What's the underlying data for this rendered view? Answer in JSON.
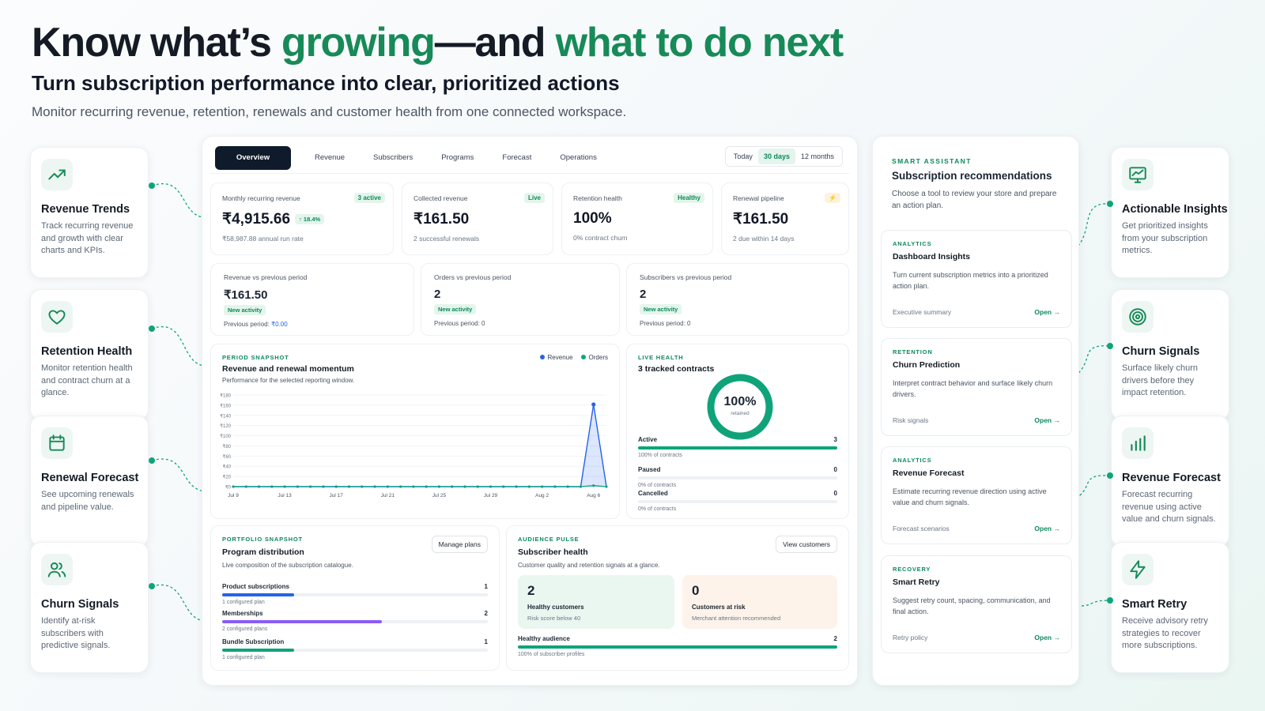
{
  "header": {
    "title_part1": "Know what’s ",
    "title_accent1": "growing",
    "title_part2": "—and ",
    "title_accent2": "what to do next",
    "subtitle": "Turn subscription performance into clear, prioritized actions",
    "description": "Monitor recurring revenue, retention, renewals and customer health from one connected workspace."
  },
  "left_features": [
    {
      "title": "Revenue Trends",
      "desc": "Track recurring revenue and growth with clear charts and KPIs.",
      "icon": "trend-up-icon"
    },
    {
      "title": "Retention Health",
      "desc": "Monitor retention health and contract churn at a glance.",
      "icon": "heart-icon"
    },
    {
      "title": "Renewal Forecast",
      "desc": "See upcoming renewals and pipeline value.",
      "icon": "calendar-icon"
    },
    {
      "title": "Churn Signals",
      "desc": "Identify at-risk subscribers with predictive signals.",
      "icon": "users-icon"
    }
  ],
  "right_features": [
    {
      "title": "Actionable Insights",
      "desc": "Get prioritized insights from your subscription metrics.",
      "icon": "chart-monitor-icon"
    },
    {
      "title": "Churn Signals",
      "desc": "Surface likely churn drivers before they impact retention.",
      "icon": "target-icon"
    },
    {
      "title": "Revenue Forecast",
      "desc": "Forecast recurring revenue using active value and churn signals.",
      "icon": "bar-chart-icon"
    },
    {
      "title": "Smart Retry",
      "desc": "Receive advisory retry strategies to recover more subscriptions.",
      "icon": "lightning-icon"
    }
  ],
  "dashboard": {
    "tabs": [
      "Overview",
      "Revenue",
      "Subscribers",
      "Programs",
      "Forecast",
      "Operations"
    ],
    "active_tab": "Overview",
    "ranges": [
      "Today",
      "30 days",
      "12 months"
    ],
    "selected_range": "30 days",
    "kpis": [
      {
        "label": "Monthly recurring revenue",
        "badge": "3 active",
        "value": "₹4,915.66",
        "delta": "↑ 18.4%",
        "sub": "₹58,987.88 annual run rate"
      },
      {
        "label": "Collected revenue",
        "badge": "Live",
        "value": "₹161.50",
        "sub": "2 successful renewals"
      },
      {
        "label": "Retention health",
        "badge": "Healthy",
        "value": "100%",
        "sub": "0% contract churn"
      },
      {
        "label": "Renewal pipeline",
        "badge": "⚡",
        "value": "₹161.50",
        "sub": "2 due within 14 days"
      }
    ],
    "comparisons": [
      {
        "label": "Revenue vs previous period",
        "value": "₹161.50",
        "tag": "New activity",
        "prev_label": "Previous period: ",
        "prev_value": "₹0.00"
      },
      {
        "label": "Orders vs previous period",
        "value": "2",
        "tag": "New activity",
        "prev_label": "Previous period: ",
        "prev_value": "0"
      },
      {
        "label": "Subscribers vs previous period",
        "value": "2",
        "tag": "New activity",
        "prev_label": "Previous period: ",
        "prev_value": "0"
      }
    ],
    "period_snapshot": {
      "eyebrow": "Period snapshot",
      "title": "Revenue and renewal momentum",
      "subtitle": "Performance for the selected reporting window."
    },
    "live_health": {
      "eyebrow": "Live health",
      "title": "3 tracked contracts",
      "ring_value": "100%",
      "ring_label": "retained",
      "ring_fraction": 1.0,
      "rows": [
        {
          "label": "Active",
          "count": "3",
          "sub": "100% of contracts",
          "fraction": 1.0
        },
        {
          "label": "Paused",
          "count": "0",
          "sub": "0% of contracts",
          "fraction": 0
        },
        {
          "label": "Cancelled",
          "count": "0",
          "sub": "0% of contracts",
          "fraction": 0
        }
      ]
    },
    "portfolio": {
      "eyebrow": "Portfolio snapshot",
      "title": "Program distribution",
      "subtitle": "Live composition of the subscription catalogue.",
      "button": "Manage plans",
      "rows": [
        {
          "label": "Product subscriptions",
          "count": "1",
          "sub": "1 configured plan",
          "fraction": 0.27,
          "color": "#2563eb"
        },
        {
          "label": "Memberships",
          "count": "2",
          "sub": "2 configured plans",
          "fraction": 0.6,
          "color": "#8b5cf6"
        },
        {
          "label": "Bundle Subscription",
          "count": "1",
          "sub": "1 configured plan",
          "fraction": 0.27,
          "color": "#0ea47a"
        }
      ]
    },
    "audience": {
      "eyebrow": "Audience pulse",
      "title": "Subscriber health",
      "subtitle": "Customer quality and retention signals at a glance.",
      "button": "View customers",
      "healthy": {
        "value": "2",
        "label": "Healthy customers",
        "sub": "Risk score below 40"
      },
      "risk": {
        "value": "0",
        "label": "Customers at risk",
        "sub": "Merchant attention recommended"
      },
      "audience_row": {
        "label": "Healthy audience",
        "count": "2",
        "sub": "100% of subscriber profiles",
        "fraction": 1.0
      }
    }
  },
  "chart_data": {
    "type": "line",
    "title": "Revenue and renewal momentum",
    "x": [
      "Jul 9",
      "Jul 10",
      "Jul 11",
      "Jul 12",
      "Jul 13",
      "Jul 14",
      "Jul 15",
      "Jul 16",
      "Jul 17",
      "Jul 18",
      "Jul 19",
      "Jul 20",
      "Jul 21",
      "Jul 22",
      "Jul 23",
      "Jul 24",
      "Jul 25",
      "Jul 26",
      "Jul 27",
      "Jul 28",
      "Jul 29",
      "Jul 30",
      "Jul 31",
      "Aug 1",
      "Aug 2",
      "Aug 3",
      "Aug 4",
      "Aug 5",
      "Aug 6",
      "Aug 7"
    ],
    "x_ticks": [
      "Jul 9",
      "Jul 13",
      "Jul 17",
      "Jul 21",
      "Jul 25",
      "Jul 29",
      "Aug 2",
      "Aug 6"
    ],
    "y_ticks": [
      "₹0",
      "₹20",
      "₹40",
      "₹60",
      "₹80",
      "₹100",
      "₹120",
      "₹140",
      "₹160",
      "₹180"
    ],
    "ylim": [
      0,
      180
    ],
    "series": [
      {
        "name": "Revenue",
        "color": "#2563eb",
        "values": [
          0,
          0,
          0,
          0,
          0,
          0,
          0,
          0,
          0,
          0,
          0,
          0,
          0,
          0,
          0,
          0,
          0,
          0,
          0,
          0,
          0,
          0,
          0,
          0,
          0,
          0,
          0,
          0,
          161.5,
          0
        ]
      },
      {
        "name": "Orders",
        "color": "#0ea47a",
        "values": [
          0,
          0,
          0,
          0,
          0,
          0,
          0,
          0,
          0,
          0,
          0,
          0,
          0,
          0,
          0,
          0,
          0,
          0,
          0,
          0,
          0,
          0,
          0,
          0,
          0,
          0,
          0,
          0,
          2,
          0
        ]
      }
    ],
    "legend": "top-right"
  },
  "assistant": {
    "eyebrow": "Smart assistant",
    "title": "Subscription recommendations",
    "desc": "Choose a tool to review your store and prepare an action plan.",
    "cards": [
      {
        "eyebrow": "Analytics",
        "title": "Dashboard Insights",
        "desc": "Turn current subscription metrics into a prioritized action plan.",
        "footer": "Executive summary",
        "open": "Open →"
      },
      {
        "eyebrow": "Retention",
        "title": "Churn Prediction",
        "desc": "Interpret contract behavior and surface likely churn drivers.",
        "footer": "Risk signals",
        "open": "Open →"
      },
      {
        "eyebrow": "Analytics",
        "title": "Revenue Forecast",
        "desc": "Estimate recurring revenue direction using active value and churn signals.",
        "footer": "Forecast scenarios",
        "open": "Open →"
      },
      {
        "eyebrow": "Recovery",
        "title": "Smart Retry",
        "desc": "Suggest retry count, spacing, communication, and final action.",
        "footer": "Retry policy",
        "open": "Open →"
      }
    ]
  },
  "colors": {
    "accent": "#178a58",
    "primary_dark": "#0f1b2b",
    "revenue_line": "#2563eb",
    "orders_line": "#0ea47a"
  }
}
